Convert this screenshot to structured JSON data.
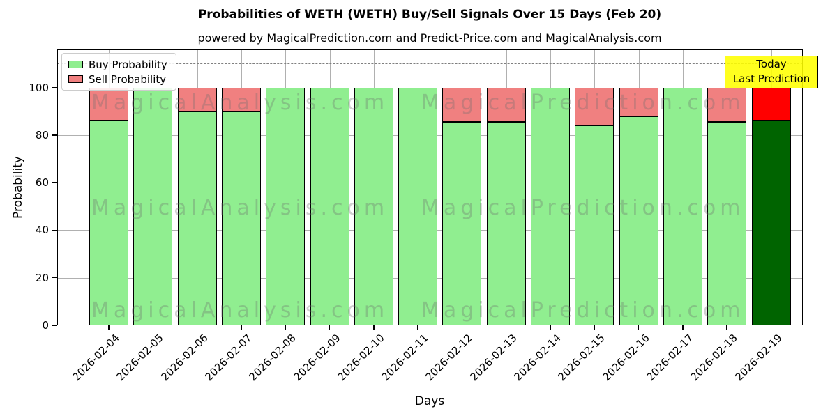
{
  "title": "Probabilities of WETH (WETH) Buy/Sell Signals Over 15 Days (Feb 20)",
  "subtitle": "powered by MagicalPrediction.com and Predict-Price.com and MagicalAnalysis.com",
  "annotation": {
    "lines": [
      "Today",
      "Last Prediction"
    ],
    "bg_color": "#FFFF00"
  },
  "watermarks": {
    "left": "MagicalAnalysis.com",
    "right": "MagicalPrediction.com"
  },
  "colors": {
    "buy": "#90EE90",
    "sell": "#F08080",
    "today_buy": "#006400",
    "today_sell": "#FF0000",
    "bar_edge": "#000000",
    "grid": "#B0B0B0",
    "dashed_guide": "#7F7F7F",
    "background": "#FFFFFF"
  },
  "chart_data": {
    "type": "bar",
    "stacked": true,
    "title": "Probabilities of WETH (WETH) Buy/Sell Signals Over 15 Days (Feb 20)",
    "xlabel": "Days",
    "ylabel": "Probability",
    "ylim": [
      0,
      116
    ],
    "yticks": [
      0,
      20,
      40,
      60,
      80,
      100
    ],
    "grid": true,
    "legend_position": "upper left",
    "dashed_guide_y": 110,
    "categories": [
      "2026-02-04",
      "2026-02-05",
      "2026-02-06",
      "2026-02-07",
      "2026-02-08",
      "2026-02-09",
      "2026-02-10",
      "2026-02-11",
      "2026-02-12",
      "2026-02-13",
      "2026-02-14",
      "2026-02-15",
      "2026-02-16",
      "2026-02-17",
      "2026-02-18",
      "2026-02-19"
    ],
    "series": [
      {
        "name": "Buy Probability",
        "color": "#90EE90",
        "values": [
          86,
          100,
          90,
          90,
          100,
          100,
          100,
          100,
          85.5,
          85.5,
          100,
          84,
          88,
          100,
          85.5,
          86
        ]
      },
      {
        "name": "Sell Probability",
        "color": "#F08080",
        "values": [
          14,
          0,
          10,
          10,
          0,
          0,
          0,
          0,
          14.5,
          14.5,
          0,
          16,
          12,
          0,
          14.5,
          14
        ]
      }
    ],
    "today_index": 15
  }
}
